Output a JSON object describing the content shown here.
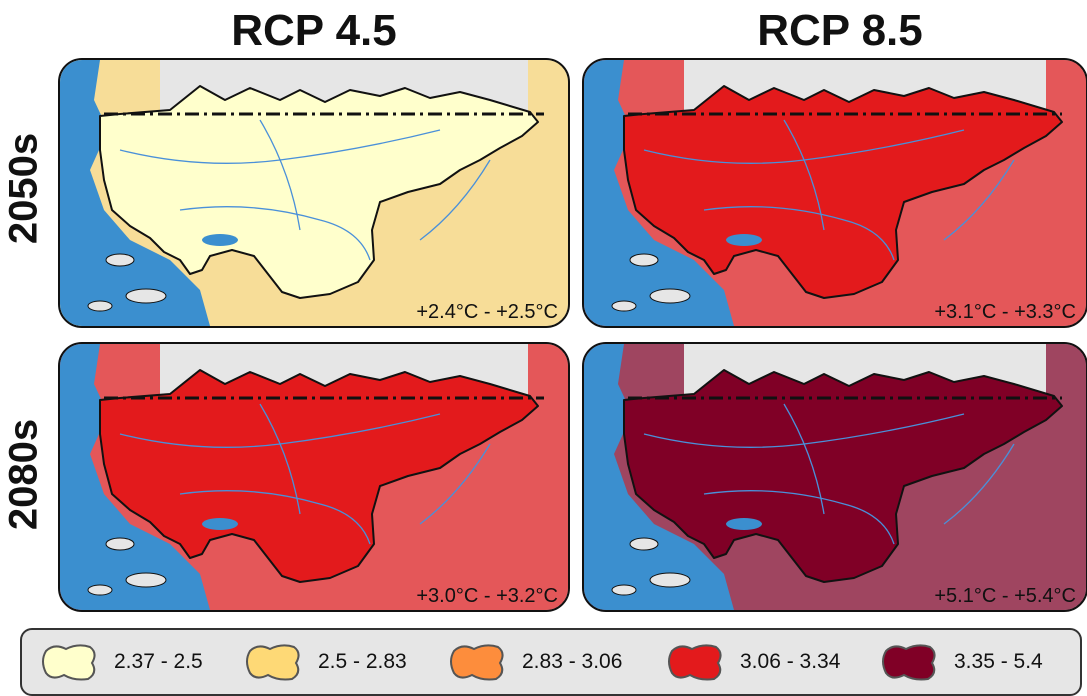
{
  "columns": [
    "RCP 4.5",
    "RCP 8.5"
  ],
  "rows": [
    "2050s",
    "2080s"
  ],
  "panels": [
    {
      "scenario": "RCP 4.5",
      "period": "2050s",
      "range": "+2.4°C - +2.5°C",
      "main_class": 0,
      "outer_class": 1
    },
    {
      "scenario": "RCP 8.5",
      "period": "2050s",
      "range": "+3.1°C - +3.3°C",
      "main_class": 3,
      "outer_class": 3
    },
    {
      "scenario": "RCP 4.5",
      "period": "2080s",
      "range": "+3.0°C - +3.2°C",
      "main_class": 3,
      "outer_class": 3
    },
    {
      "scenario": "RCP 8.5",
      "period": "2080s",
      "range": "+5.1°C - +5.4°C",
      "main_class": 4,
      "outer_class": 4
    }
  ],
  "legend": [
    {
      "label": "2.37 - 2.5",
      "color": "#ffffcc"
    },
    {
      "label": "2.5 - 2.83",
      "color": "#fed976"
    },
    {
      "label": "2.83 - 3.06",
      "color": "#fd8d3c"
    },
    {
      "label": "3.06 - 3.34",
      "color": "#e31a1c"
    },
    {
      "label": "3.35 - 5.4",
      "color": "#800026"
    }
  ],
  "colors": {
    "water": "#3b8fcf",
    "land_out": "#e6e6e6",
    "border": "#111111",
    "river": "#4a90d9"
  }
}
